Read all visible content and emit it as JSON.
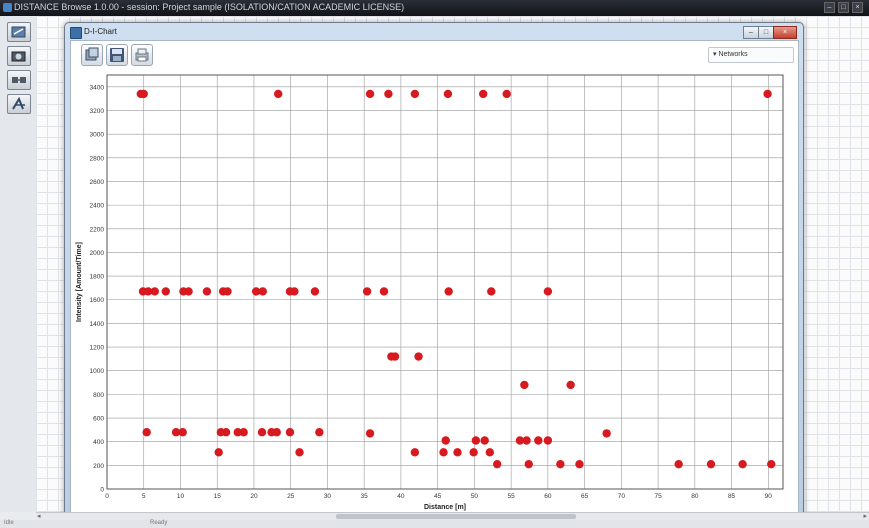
{
  "app": {
    "title": "DISTANCE Browse 1.0.00 - session: Project sample (ISOLATION/CATION ACADEMIC LICENSE)",
    "win_min": "–",
    "win_max": "□",
    "win_close": "×"
  },
  "left_toolbar": {
    "items": [
      "network-tool-icon",
      "camera-tool-icon",
      "nodes-tool-icon",
      "pen-tool-icon"
    ]
  },
  "chart_window": {
    "title": "D-I-Chart",
    "toolbar": [
      "zoom-icon",
      "save-icon",
      "print-icon"
    ],
    "networks_dropdown": "▾ Networks",
    "win_min": "–",
    "win_max": "□",
    "win_close": "×"
  },
  "chart_data": {
    "type": "scatter",
    "title": "",
    "xlabel": "Distance [m]",
    "ylabel": "Intensity [Amount/Time]",
    "xlim": [
      0,
      92
    ],
    "ylim": [
      0,
      3500
    ],
    "xticks": [
      0,
      5,
      10,
      15,
      20,
      25,
      30,
      35,
      40,
      45,
      50,
      55,
      60,
      65,
      70,
      75,
      80,
      85,
      90
    ],
    "yticks": [
      0,
      200,
      400,
      600,
      800,
      1000,
      1200,
      1400,
      1600,
      1800,
      2000,
      2200,
      2400,
      2600,
      2800,
      3000,
      3200,
      3400
    ],
    "grid": true,
    "point_color": "#d71920",
    "series": [
      {
        "points": [
          [
            4.6,
            3340
          ],
          [
            5.0,
            3340
          ],
          [
            23.3,
            3340
          ],
          [
            35.8,
            3340
          ],
          [
            38.3,
            3340
          ],
          [
            41.9,
            3340
          ],
          [
            46.4,
            3340
          ],
          [
            51.2,
            3340
          ],
          [
            54.4,
            3340
          ],
          [
            89.9,
            3340
          ],
          [
            4.9,
            1670
          ],
          [
            5.6,
            1670
          ],
          [
            6.5,
            1670
          ],
          [
            8.0,
            1670
          ],
          [
            10.4,
            1670
          ],
          [
            11.1,
            1670
          ],
          [
            13.6,
            1670
          ],
          [
            15.8,
            1670
          ],
          [
            16.4,
            1670
          ],
          [
            20.3,
            1670
          ],
          [
            21.2,
            1670
          ],
          [
            24.9,
            1670
          ],
          [
            25.5,
            1670
          ],
          [
            28.3,
            1670
          ],
          [
            35.4,
            1670
          ],
          [
            37.7,
            1670
          ],
          [
            46.5,
            1670
          ],
          [
            52.3,
            1670
          ],
          [
            60.0,
            1670
          ],
          [
            38.7,
            1120
          ],
          [
            39.2,
            1120
          ],
          [
            42.4,
            1120
          ],
          [
            56.8,
            880
          ],
          [
            63.1,
            880
          ],
          [
            5.4,
            480
          ],
          [
            9.4,
            480
          ],
          [
            10.3,
            480
          ],
          [
            15.5,
            480
          ],
          [
            16.2,
            480
          ],
          [
            17.8,
            480
          ],
          [
            18.6,
            480
          ],
          [
            21.1,
            480
          ],
          [
            22.4,
            480
          ],
          [
            23.1,
            480
          ],
          [
            24.9,
            480
          ],
          [
            28.9,
            480
          ],
          [
            35.8,
            470
          ],
          [
            68.0,
            470
          ],
          [
            15.2,
            310
          ],
          [
            26.2,
            310
          ],
          [
            41.9,
            310
          ],
          [
            45.8,
            310
          ],
          [
            47.7,
            310
          ],
          [
            49.9,
            310
          ],
          [
            52.1,
            310
          ],
          [
            46.1,
            410
          ],
          [
            50.2,
            410
          ],
          [
            51.4,
            410
          ],
          [
            56.2,
            410
          ],
          [
            57.1,
            410
          ],
          [
            58.7,
            410
          ],
          [
            60.0,
            410
          ],
          [
            53.1,
            210
          ],
          [
            57.4,
            210
          ],
          [
            61.7,
            210
          ],
          [
            64.3,
            210
          ],
          [
            77.8,
            210
          ],
          [
            82.2,
            210
          ],
          [
            86.5,
            210
          ],
          [
            90.4,
            210
          ]
        ]
      }
    ]
  },
  "status": {
    "left": "Idle",
    "center": "Ready"
  }
}
